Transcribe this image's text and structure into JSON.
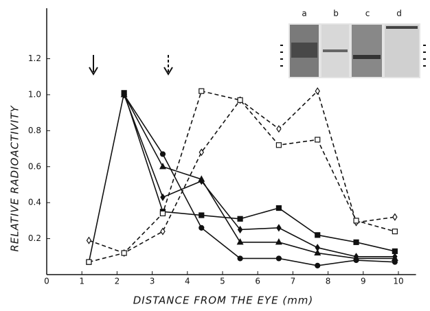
{
  "chart_data": {
    "type": "line",
    "xlabel": "DISTANCE FROM THE EYE (mm)",
    "ylabel": "RELATIVE RADIOACTIVITY",
    "xlim": [
      0,
      10.5
    ],
    "ylim": [
      0,
      1.45
    ],
    "xticks": [
      0,
      1,
      2,
      3,
      4,
      5,
      6,
      7,
      8,
      9,
      10
    ],
    "yticks": [
      0.2,
      0.4,
      0.6,
      0.8,
      {
        "value": 1,
        "label": "1.0"
      },
      1.2
    ],
    "x": [
      1.2,
      2.2,
      3.3,
      4.4,
      5.5,
      6.6,
      7.7,
      8.8,
      9.9
    ],
    "gel_labels": [
      "a",
      "b",
      "c",
      "d"
    ],
    "series": [
      {
        "color": "#111111",
        "marker": "square",
        "filled": true,
        "dashed": false,
        "values": [
          0.07,
          1.01,
          0.35,
          0.33,
          0.31,
          0.37,
          0.22,
          0.18,
          0.13
        ]
      },
      {
        "color": "#111111",
        "marker": "circle",
        "filled": true,
        "dashed": false,
        "values": [
          null,
          1.0,
          0.67,
          0.26,
          0.09,
          0.09,
          0.05,
          0.08,
          0.07
        ]
      },
      {
        "color": "#111111",
        "marker": "triangle",
        "filled": true,
        "dashed": false,
        "values": [
          null,
          1.0,
          0.6,
          0.53,
          0.18,
          0.18,
          0.12,
          0.09,
          0.09
        ]
      },
      {
        "color": "#111111",
        "marker": "diamond",
        "filled": true,
        "dashed": false,
        "values": [
          null,
          1.0,
          0.43,
          0.52,
          0.25,
          0.26,
          0.15,
          0.1,
          0.1
        ]
      },
      {
        "color": "#111111",
        "marker": "diamond",
        "filled": false,
        "dashed": true,
        "values": [
          0.19,
          0.12,
          0.24,
          0.68,
          0.97,
          0.81,
          1.02,
          0.29,
          0.32
        ]
      },
      {
        "color": "#111111",
        "marker": "square",
        "filled": false,
        "dashed": true,
        "values": [
          0.07,
          0.12,
          0.34,
          1.02,
          0.97,
          0.72,
          0.75,
          0.3,
          0.24
        ]
      }
    ]
  }
}
